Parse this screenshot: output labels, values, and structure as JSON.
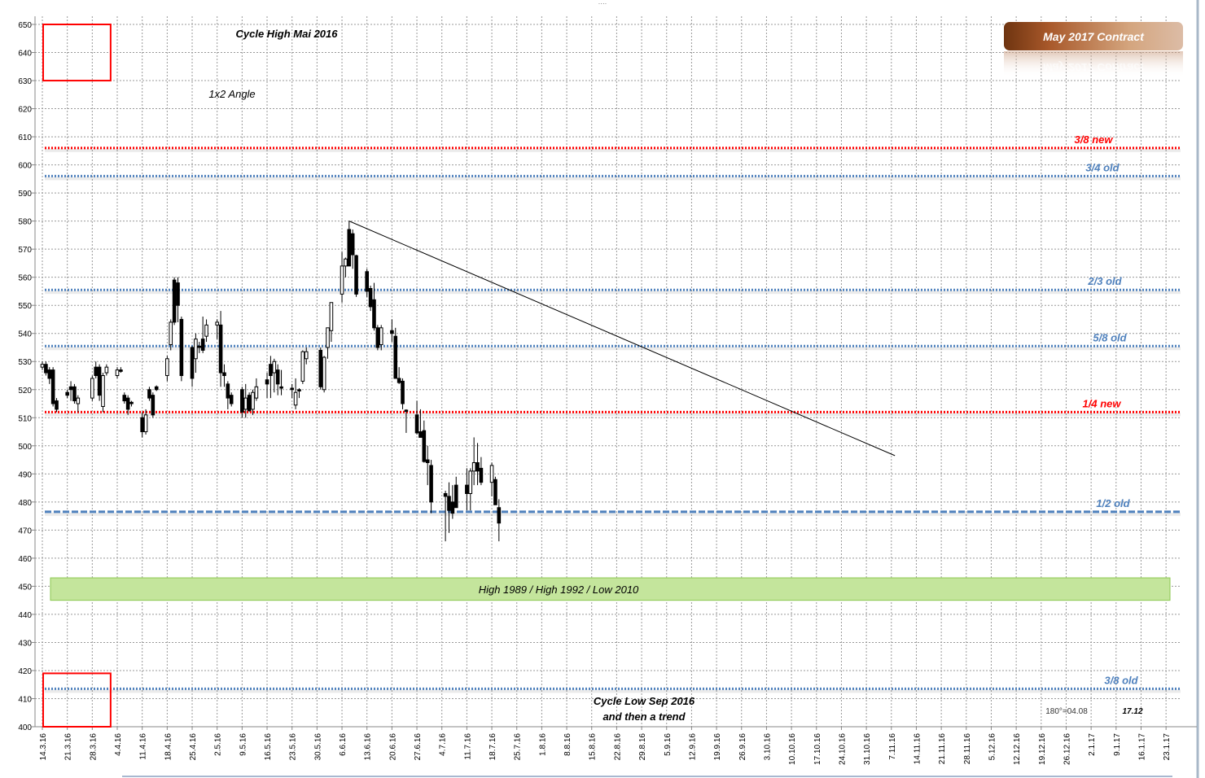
{
  "chart_data": {
    "type": "candlestick",
    "title": "May 2017 Contract",
    "ylim": [
      400,
      650
    ],
    "ytick_step": 10,
    "x_range": [
      "14.3.16",
      "23.1.17"
    ],
    "x_ticks": [
      "14.3.16",
      "21.3.16",
      "28.3.16",
      "4.4.16",
      "11.4.16",
      "18.4.16",
      "25.4.16",
      "2.5.16",
      "9.5.16",
      "16.5.16",
      "23.5.16",
      "30.5.16",
      "6.6.16",
      "13.6.16",
      "20.6.16",
      "27.6.16",
      "4.7.16",
      "11.7.16",
      "18.7.16",
      "25.7.16",
      "1.8.16",
      "8.8.16",
      "15.8.16",
      "22.8.16",
      "29.8.16",
      "5.9.16",
      "12.9.16",
      "19.9.16",
      "26.9.16",
      "3.10.16",
      "10.10.16",
      "17.10.16",
      "24.10.16",
      "31.10.16",
      "7.11.16",
      "14.11.16",
      "21.11.16",
      "28.11.16",
      "5.12.16",
      "12.12.16",
      "19.12.16",
      "26.12.16",
      "2.1.17",
      "9.1.17",
      "16.1.17",
      "23.1.17"
    ],
    "grid": true,
    "candle_fields": [
      "date",
      "open",
      "high",
      "low",
      "close"
    ],
    "candles": [
      [
        "14.3.16",
        528,
        530,
        527,
        529
      ],
      [
        "15.3.16",
        529,
        530,
        525,
        526
      ],
      [
        "16.3.16",
        527,
        528,
        522,
        524
      ],
      [
        "17.3.16",
        527,
        528,
        514,
        515
      ],
      [
        "18.3.16",
        516,
        517,
        512,
        513
      ],
      [
        "21.3.16",
        519,
        520,
        517,
        518
      ],
      [
        "22.3.16",
        521,
        523,
        516,
        520
      ],
      [
        "23.3.16",
        521,
        522,
        515,
        516
      ],
      [
        "24.3.16",
        515,
        518,
        512,
        517
      ],
      [
        "28.3.16",
        517,
        525,
        516,
        524
      ],
      [
        "29.3.16",
        528,
        530,
        524,
        525
      ],
      [
        "30.3.16",
        528,
        529,
        516,
        518
      ],
      [
        "31.3.16",
        514,
        526,
        512,
        525
      ],
      [
        "1.4.16",
        526,
        529,
        525,
        528
      ],
      [
        "4.4.16",
        525,
        528,
        524,
        527
      ],
      [
        "5.4.16",
        527,
        528,
        526,
        526.5
      ],
      [
        "6.4.16",
        518,
        519,
        515,
        516
      ],
      [
        "7.4.16",
        517,
        518,
        511,
        513
      ],
      [
        "8.4.16",
        515.5,
        516,
        514,
        515
      ],
      [
        "11.4.16",
        510,
        512,
        503,
        505
      ],
      [
        "12.4.16",
        505,
        513,
        504,
        511
      ],
      [
        "13.4.16",
        520,
        521,
        516,
        517
      ],
      [
        "14.4.16",
        518,
        519,
        510,
        511
      ],
      [
        "15.4.16",
        521,
        521.5,
        519.5,
        520
      ],
      [
        "18.4.16",
        525,
        532,
        523,
        531
      ],
      [
        "19.4.16",
        536,
        545,
        534,
        544
      ],
      [
        "20.4.16",
        559,
        560,
        543,
        544
      ],
      [
        "21.4.16",
        558,
        560,
        544,
        550
      ],
      [
        "22.4.16",
        545,
        546,
        523,
        525
      ],
      [
        "25.4.16",
        535,
        535.5,
        521,
        524
      ],
      [
        "26.4.16",
        531,
        540,
        526,
        538
      ],
      [
        "27.4.16",
        535.5,
        537,
        533,
        535
      ],
      [
        "28.4.16",
        538,
        546,
        533,
        534
      ],
      [
        "29.4.16",
        539,
        545,
        537,
        543
      ],
      [
        "2.5.16",
        543,
        545,
        538,
        544
      ],
      [
        "3.5.16",
        543,
        548,
        521,
        526
      ],
      [
        "4.5.16",
        526,
        529,
        521,
        525
      ],
      [
        "5.5.16",
        522,
        523,
        513,
        517
      ],
      [
        "6.5.16",
        518,
        519,
        514,
        515
      ],
      [
        "9.5.16",
        520,
        521,
        510,
        512
      ],
      [
        "10.5.16",
        513,
        522,
        510,
        517
      ],
      [
        "11.5.16",
        518,
        519,
        512,
        512.5
      ],
      [
        "12.5.16",
        513,
        520,
        511,
        519
      ],
      [
        "13.5.16",
        517,
        524,
        516,
        521
      ],
      [
        "16.5.16",
        523.5,
        526,
        517,
        522
      ],
      [
        "17.5.16",
        529,
        532,
        517,
        525
      ],
      [
        "18.5.16",
        526,
        531,
        519,
        530
      ],
      [
        "19.5.16",
        527,
        529,
        518,
        522
      ],
      [
        "20.5.16",
        521,
        527,
        518,
        520.5
      ],
      [
        "23.5.16",
        520.5,
        522,
        517,
        520
      ],
      [
        "24.5.16",
        514.5,
        524,
        513,
        519
      ],
      [
        "25.5.16",
        520,
        520.5,
        517,
        519.5
      ],
      [
        "26.5.16",
        523,
        534,
        522,
        533.5
      ],
      [
        "27.5.16",
        531,
        535,
        529,
        533.5
      ],
      [
        "31.5.16",
        534,
        535,
        520,
        521
      ],
      [
        "1.6.16",
        520,
        532,
        519,
        531.5
      ],
      [
        "2.6.16",
        535,
        542,
        531,
        542
      ],
      [
        "3.6.16",
        541,
        551,
        537,
        551
      ],
      [
        "6.6.16",
        554,
        569,
        551,
        564
      ],
      [
        "7.6.16",
        564,
        567,
        560,
        566.5
      ],
      [
        "8.6.16",
        577,
        580,
        564,
        564
      ],
      [
        "9.6.16",
        575.5,
        577,
        563,
        568
      ],
      [
        "10.6.16",
        567.7,
        568,
        553,
        554
      ],
      [
        "13.6.16",
        562,
        563,
        553,
        555
      ],
      [
        "14.6.16",
        556,
        557,
        548,
        549.5
      ],
      [
        "15.6.16",
        552,
        558,
        541,
        542
      ],
      [
        "16.6.16",
        542,
        543,
        534,
        535
      ],
      [
        "17.6.16",
        536,
        543,
        534,
        542
      ],
      [
        "20.6.16",
        541,
        545,
        537,
        540
      ],
      [
        "21.6.16",
        539,
        542,
        524,
        524
      ],
      [
        "22.6.16",
        524,
        528,
        522,
        522.5
      ],
      [
        "23.6.16",
        523,
        524,
        513,
        515
      ],
      [
        "24.6.16",
        512.7,
        513,
        504.6,
        512.3
      ],
      [
        "27.6.16",
        511,
        516,
        504,
        504.6
      ],
      [
        "28.6.16",
        505,
        513,
        503,
        503
      ],
      [
        "29.6.16",
        505.4,
        509,
        494,
        494.4
      ],
      [
        "30.6.16",
        495,
        500,
        486,
        494
      ],
      [
        "1.7.16",
        493,
        495,
        476,
        480
      ],
      [
        "5.7.16",
        483,
        484,
        466,
        482
      ],
      [
        "6.7.16",
        482,
        487,
        469,
        477
      ],
      [
        "7.7.16",
        480,
        486,
        474,
        476
      ],
      [
        "8.7.16",
        486,
        489,
        478,
        478
      ],
      [
        "11.7.16",
        486,
        492,
        477,
        483
      ],
      [
        "12.7.16",
        483,
        492,
        477,
        491
      ],
      [
        "13.7.16",
        491,
        503,
        486,
        494
      ],
      [
        "14.7.16",
        494,
        501,
        486,
        491
      ],
      [
        "15.7.16",
        492,
        496,
        486,
        487
      ],
      [
        "18.7.16",
        487,
        494,
        482,
        493
      ],
      [
        "19.7.16",
        488,
        489,
        479,
        479
      ],
      [
        "20.7.16",
        478,
        481,
        466,
        472.5
      ]
    ],
    "levels": [
      {
        "label": "3/8 new",
        "value": 606,
        "color": "#ff0000",
        "style": "dotted"
      },
      {
        "label": "3/4 old",
        "value": 596,
        "color": "#4f81bd",
        "style": "dotted"
      },
      {
        "label": "2/3 old",
        "value": 555.5,
        "color": "#4f81bd",
        "style": "dotted"
      },
      {
        "label": "5/8 old",
        "value": 535.5,
        "color": "#4f81bd",
        "style": "dotted"
      },
      {
        "label": "1/4 new",
        "value": 512,
        "color": "#ff0000",
        "style": "dotted"
      },
      {
        "label": "1/2 old",
        "value": 476.5,
        "color": "#4f81bd",
        "style": "dashed"
      },
      {
        "label": "3/8 old",
        "value": 413.5,
        "color": "#4f81bd",
        "style": "dotted"
      }
    ],
    "zone": {
      "label": "High 1989 / High 1992 / Low 2010",
      "low": 445,
      "high": 453,
      "color": "#c4e59c"
    },
    "trendline": {
      "from": [
        "8.6.16",
        580
      ],
      "to": [
        "8.11.16",
        496.5
      ]
    },
    "boxes": [
      {
        "from": "14.3.16",
        "to": "1.4.16",
        "low": 630,
        "high": 650,
        "color": "#ff0000"
      },
      {
        "from": "14.3.16",
        "to": "1.4.16",
        "low": 400,
        "high": 419,
        "color": "#ff0000"
      }
    ],
    "annotations": {
      "cycle_high": "Cycle High Mai 2016",
      "angle": "1x2 Angle",
      "cycle_low_1": "Cycle Low Sep 2016",
      "cycle_low_2": "and then a trend",
      "degree": "180°=04.08",
      "date_mark": "17.12"
    },
    "logo_color_dark": "#7a3c14",
    "logo_color_light": "#dcb9a0"
  }
}
